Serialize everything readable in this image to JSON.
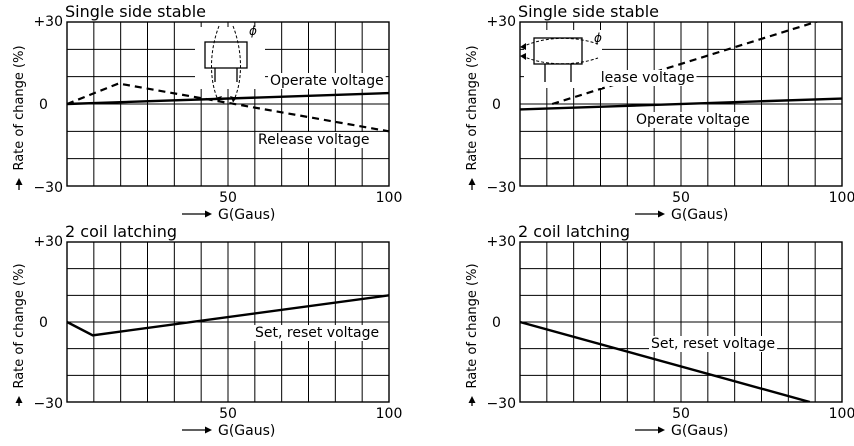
{
  "chart_data": [
    {
      "type": "line",
      "title": "Single side stable",
      "xlabel": "G(Gaus)",
      "ylabel": "Rate of change (%)",
      "xlim": [
        0,
        100
      ],
      "ylim": [
        -30,
        30
      ],
      "x_ticks": [
        "50",
        "100"
      ],
      "y_ticks": [
        "+30",
        "0",
        "−30"
      ],
      "grid": true,
      "diagram": "coil-magnet-1",
      "diagram_label": "ϕ",
      "series": [
        {
          "name": "Operate voltage",
          "style": "solid",
          "points": [
            [
              0,
              0
            ],
            [
              100,
              4
            ]
          ]
        },
        {
          "name": "Release voltage",
          "style": "dashed",
          "points": [
            [
              0,
              0
            ],
            [
              16,
              7.5
            ],
            [
              100,
              -10
            ]
          ]
        }
      ]
    },
    {
      "type": "line",
      "title": "Single side stable",
      "xlabel": "G(Gaus)",
      "ylabel": "Rate of change (%)",
      "xlim": [
        0,
        100
      ],
      "ylim": [
        -30,
        30
      ],
      "x_ticks": [
        "50",
        "100"
      ],
      "y_ticks": [
        "+30",
        "0",
        "−30"
      ],
      "grid": true,
      "diagram": "coil-magnet-2",
      "diagram_label": "ϕ",
      "series": [
        {
          "name": "Release voltage",
          "style": "dashed",
          "points": [
            [
              10,
              0
            ],
            [
              100,
              33
            ]
          ]
        },
        {
          "name": "Operate voltage",
          "style": "solid",
          "points": [
            [
              0,
              -2
            ],
            [
              100,
              2
            ]
          ]
        }
      ]
    },
    {
      "type": "line",
      "title": "2 coil latching",
      "xlabel": "G(Gaus)",
      "ylabel": "Rate of change (%)",
      "xlim": [
        0,
        100
      ],
      "ylim": [
        -30,
        30
      ],
      "x_ticks": [
        "50",
        "100"
      ],
      "y_ticks": [
        "+30",
        "0",
        "−30"
      ],
      "grid": true,
      "series": [
        {
          "name": "Set, reset voltage",
          "style": "solid",
          "points": [
            [
              0,
              0
            ],
            [
              8,
              -5
            ],
            [
              100,
              10
            ]
          ]
        }
      ]
    },
    {
      "type": "line",
      "title": "2 coil latching",
      "xlabel": "G(Gaus)",
      "ylabel": "Rate of change (%)",
      "xlim": [
        0,
        100
      ],
      "ylim": [
        -30,
        30
      ],
      "x_ticks": [
        "50",
        "100"
      ],
      "y_ticks": [
        "+30",
        "0",
        "−30"
      ],
      "grid": true,
      "series": [
        {
          "name": "Set, reset voltage",
          "style": "solid",
          "points": [
            [
              0,
              0
            ],
            [
              90,
              -30
            ]
          ]
        }
      ]
    }
  ]
}
